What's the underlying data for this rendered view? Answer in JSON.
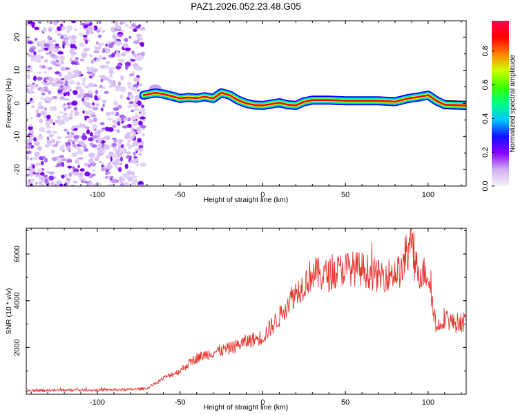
{
  "title": "PAZ1.2026.052.23.48.G05",
  "chart_data": [
    {
      "type": "heatmap",
      "xlabel": "Height of straight line (km)",
      "ylabel": "Frequency (Hz)",
      "xlim": [
        -143,
        123
      ],
      "ylim": [
        -25,
        25
      ],
      "xticks": [
        -100,
        -50,
        0,
        50,
        100
      ],
      "yticks": [
        -20,
        -10,
        0,
        10,
        20
      ],
      "xtick_labels": [
        "-100",
        "-50",
        "0",
        "50",
        "100"
      ],
      "ytick_labels": [
        "-20",
        "-10",
        "0",
        "10",
        "20"
      ],
      "noise_region_x": [
        -143,
        -72
      ],
      "ridge": {
        "x": [
          -72,
          -65,
          -60,
          -55,
          -50,
          -45,
          -40,
          -35,
          -30,
          -25,
          -20,
          -15,
          -10,
          -5,
          0,
          5,
          10,
          15,
          20,
          25,
          30,
          40,
          50,
          60,
          70,
          80,
          88,
          95,
          100,
          105,
          110,
          123
        ],
        "y": [
          2.5,
          3.2,
          2.8,
          2.2,
          1.5,
          1.8,
          1.6,
          2.0,
          1.5,
          3.2,
          2.5,
          1.0,
          0,
          -0.5,
          -0.6,
          -0.2,
          0.2,
          -0.4,
          -0.6,
          0.5,
          1.0,
          1.0,
          0.8,
          0.8,
          0.8,
          0.5,
          1.5,
          2.0,
          2.5,
          0.8,
          -0.4,
          -0.6
        ]
      },
      "colorbar": {
        "label": "Normalized spectral amplitude",
        "ticks": [
          0.0,
          0.2,
          0.4,
          0.6,
          0.8
        ],
        "tick_labels": [
          "0.0",
          "0.2",
          "0.4",
          "0.6",
          "0.8"
        ],
        "colors": [
          "#f4f2f8",
          "#cfb0f0",
          "#8a00ff",
          "#1010ff",
          "#00c8ff",
          "#00ff80",
          "#40ff00",
          "#d0ff00",
          "#ff7f00",
          "#ff0000",
          "#ff0050"
        ]
      }
    },
    {
      "type": "line",
      "xlabel": "Height of straight line (km)",
      "ylabel": "SNR (10 * v/v)",
      "xlim": [
        -143,
        123
      ],
      "ylim": [
        0,
        7100
      ],
      "xticks": [
        -100,
        -50,
        0,
        50,
        100
      ],
      "yticks": [
        2000,
        4000,
        6000
      ],
      "xtick_labels": [
        "-100",
        "-50",
        "0",
        "50",
        "100"
      ],
      "ytick_labels": [
        "2000",
        "4000",
        "6000"
      ],
      "series": [
        {
          "name": "SNR",
          "color": "#e8302a",
          "x": [
            -143,
            -120,
            -100,
            -80,
            -70,
            -65,
            -60,
            -55,
            -50,
            -45,
            -40,
            -30,
            -20,
            -10,
            0,
            10,
            15,
            20,
            25,
            30,
            35,
            40,
            50,
            60,
            70,
            80,
            85,
            88,
            90,
            95,
            100,
            102,
            105,
            110,
            115,
            123
          ],
          "y": [
            150,
            180,
            180,
            200,
            250,
            450,
            700,
            850,
            1000,
            1300,
            1550,
            1800,
            1950,
            2250,
            2450,
            3300,
            3900,
            4350,
            4700,
            5200,
            5100,
            5100,
            5400,
            5350,
            5050,
            5200,
            5300,
            5900,
            5800,
            5200,
            5200,
            4300,
            2800,
            3300,
            3050,
            3100
          ]
        }
      ]
    }
  ]
}
